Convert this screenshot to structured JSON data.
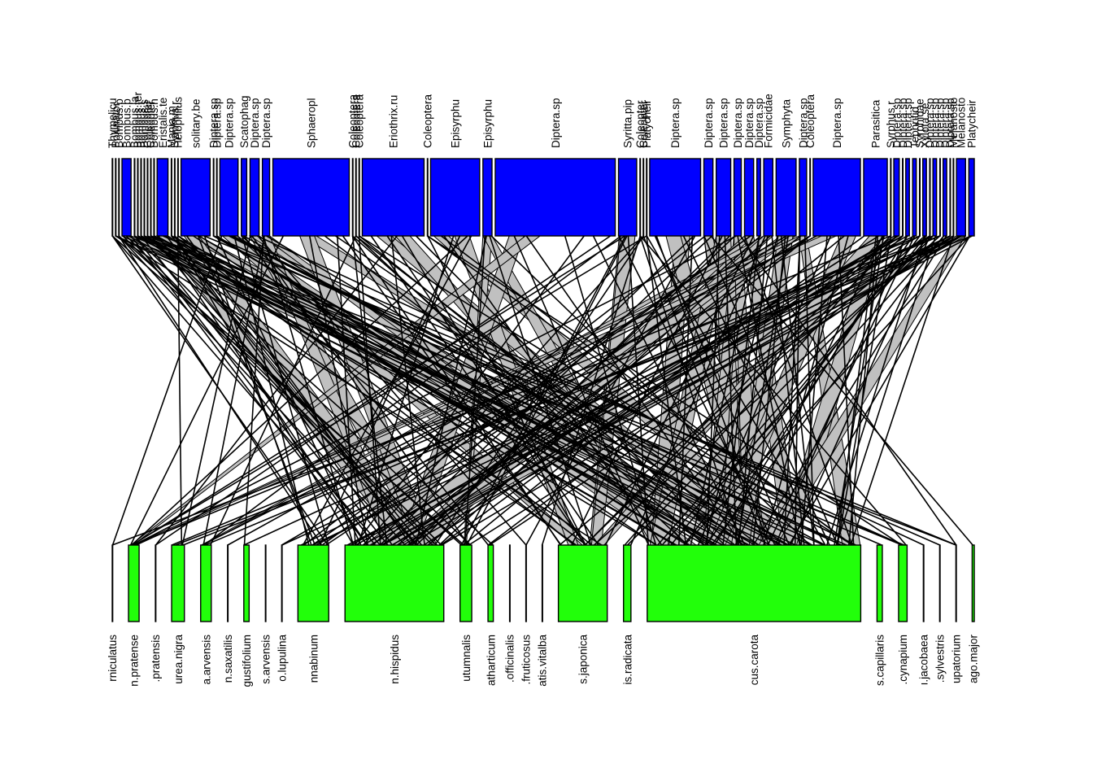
{
  "chart_data": {
    "type": "bipartite-web",
    "colors": {
      "higher_box": "#0000FF",
      "lower_box": "#22FF0A",
      "interaction_band": "#C0C0C0",
      "link_line": "#000000",
      "box_border": "#000000"
    },
    "higher": [
      {
        "label": "Thymelicu",
        "abundance": 0
      },
      {
        "label": "Pollinator",
        "abundance": 0
      },
      {
        "label": "Bombus.p",
        "abundance": 0
      },
      {
        "label": "Bombus.p",
        "abundance": 5
      },
      {
        "label": "Bombus.la",
        "abundance": 0
      },
      {
        "label": "Bombus.ter",
        "abundance": 0
      },
      {
        "label": "Bombus.t",
        "abundance": 0
      },
      {
        "label": "Bombus.s",
        "abundance": 0
      },
      {
        "label": "Coleopter",
        "abundance": 0
      },
      {
        "label": "Coleopter",
        "abundance": 0
      },
      {
        "label": "Bombus.h",
        "abundance": 0
      },
      {
        "label": "Eristalis.te",
        "abundance": 6
      },
      {
        "label": "Mania.m",
        "abundance": 0
      },
      {
        "label": "Syrphus.r",
        "abundance": 0
      },
      {
        "label": "Helophilus",
        "abundance": 0
      },
      {
        "label": "solitary.be",
        "abundance": 16
      },
      {
        "label": "Diptera.sp",
        "abundance": 0
      },
      {
        "label": "Diptera.sp",
        "abundance": 0
      },
      {
        "label": "Diptera.sp",
        "abundance": 10
      },
      {
        "label": "Scatophag",
        "abundance": 3
      },
      {
        "label": "Diptera.sp",
        "abundance": 5
      },
      {
        "label": "Diptera.sp",
        "abundance": 4
      },
      {
        "label": "Sphaeropl",
        "abundance": 42
      },
      {
        "label": "Coleoptera",
        "abundance": 0
      },
      {
        "label": "Coleoptera",
        "abundance": 0
      },
      {
        "label": "Coleoptera",
        "abundance": 0
      },
      {
        "label": "Eriothrix.ru",
        "abundance": 34
      },
      {
        "label": "Coleoptera",
        "abundance": 0
      },
      {
        "label": "Episyrphu",
        "abundance": 27
      },
      {
        "label": "Episyrphu",
        "abundance": 5
      },
      {
        "label": "Diptera.sp",
        "abundance": 66
      },
      {
        "label": "Syritta.pip",
        "abundance": 10
      },
      {
        "label": "Coleopter",
        "abundance": 0
      },
      {
        "label": "Coleopter",
        "abundance": 0
      },
      {
        "label": "Platycheir",
        "abundance": 0
      },
      {
        "label": "Diptera.sp",
        "abundance": 28
      },
      {
        "label": "Diptera.sp",
        "abundance": 5
      },
      {
        "label": "Diptera.sp",
        "abundance": 8
      },
      {
        "label": "Diptera.sp",
        "abundance": 4
      },
      {
        "label": "Diptera.sp",
        "abundance": 5
      },
      {
        "label": "Diptera.sp",
        "abundance": 2
      },
      {
        "label": "Formicidae",
        "abundance": 5
      },
      {
        "label": "Symphyta",
        "abundance": 11
      },
      {
        "label": "Diptera.sp",
        "abundance": 4
      },
      {
        "label": "Coleoptera",
        "abundance": 0
      },
      {
        "label": "Diptera.sp",
        "abundance": 26
      },
      {
        "label": "Parasitica",
        "abundance": 13
      },
      {
        "label": "Syrphus.r",
        "abundance": 0
      },
      {
        "label": "Diptera.sp",
        "abundance": 3
      },
      {
        "label": "Diptera.sp",
        "abundance": 0
      },
      {
        "label": "Diptera.sp",
        "abundance": 2
      },
      {
        "label": "Tephritid",
        "abundance": 2
      },
      {
        "label": "Syrphidae",
        "abundance": 0
      },
      {
        "label": "Xylota.se",
        "abundance": 2
      },
      {
        "label": "Diptera.sp",
        "abundance": 0
      },
      {
        "label": "Diptera.sp",
        "abundance": 2
      },
      {
        "label": "Diptera.sp",
        "abundance": 0
      },
      {
        "label": "Diptera.sp",
        "abundance": 2
      },
      {
        "label": "Diptera.sp",
        "abundance": 0
      },
      {
        "label": "Melanosto",
        "abundance": 0
      },
      {
        "label": "Melanosto",
        "abundance": 5
      },
      {
        "label": "Platycheir",
        "abundance": 3
      }
    ],
    "lower": [
      {
        "label": "rniculatus",
        "abundance": 0
      },
      {
        "label": "n.pratense",
        "abundance": 10
      },
      {
        "label": ".pratensis",
        "abundance": 0
      },
      {
        "label": "urea.nigra",
        "abundance": 12
      },
      {
        "label": "a.arvensis",
        "abundance": 10
      },
      {
        "label": "n.saxatilis",
        "abundance": 0
      },
      {
        "label": "gustifolium",
        "abundance": 5
      },
      {
        "label": "s.arvensis",
        "abundance": 0
      },
      {
        "label": "o.lupulina",
        "abundance": 0
      },
      {
        "label": "nnabinum",
        "abundance": 29
      },
      {
        "label": "n.hispidus",
        "abundance": 93
      },
      {
        "label": "utumnalis",
        "abundance": 11
      },
      {
        "label": "atharticum",
        "abundance": 5
      },
      {
        "label": ".officinalis",
        "abundance": 0
      },
      {
        "label": ".fruticosus",
        "abundance": 0
      },
      {
        "label": "atis.vitalba",
        "abundance": 0
      },
      {
        "label": "s.japonica",
        "abundance": 46
      },
      {
        "label": "is.radicata",
        "abundance": 7
      },
      {
        "label": "cus.carota",
        "abundance": 201
      },
      {
        "label": "s.capillaris",
        "abundance": 5
      },
      {
        "label": ".cynapium",
        "abundance": 8
      },
      {
        "label": "ı.jacobaea",
        "abundance": 0
      },
      {
        "label": ".sylvestris",
        "abundance": 0
      },
      {
        "label": "upatorium",
        "abundance": 0
      },
      {
        "label": "ago.major",
        "abundance": 2
      }
    ]
  }
}
